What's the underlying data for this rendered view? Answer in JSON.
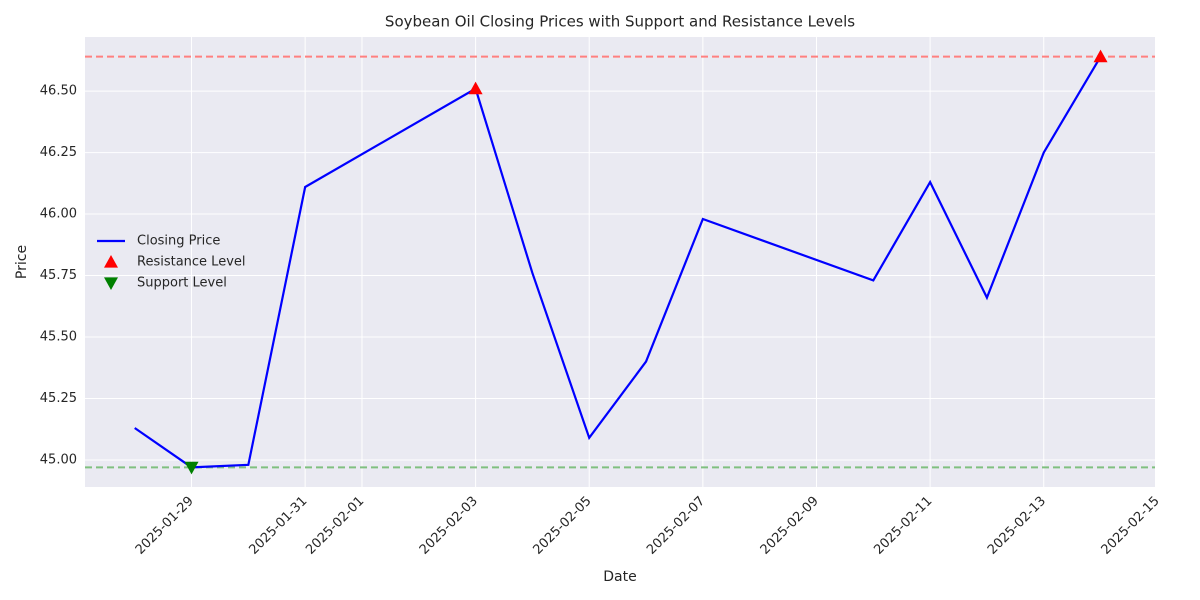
{
  "chart_data": {
    "type": "line",
    "title": "Soybean Oil Closing Prices with Support and Resistance Levels",
    "xlabel": "Date",
    "ylabel": "Price",
    "x": [
      "2025-01-28",
      "2025-01-29",
      "2025-01-30",
      "2025-01-31",
      "2025-02-03",
      "2025-02-04",
      "2025-02-05",
      "2025-02-06",
      "2025-02-07",
      "2025-02-10",
      "2025-02-11",
      "2025-02-12",
      "2025-02-13",
      "2025-02-14"
    ],
    "series": [
      {
        "name": "Closing Price",
        "type": "line",
        "color": "#0000ff",
        "values": [
          45.13,
          44.97,
          44.98,
          46.11,
          46.51,
          45.76,
          45.09,
          45.4,
          45.98,
          45.73,
          46.13,
          45.66,
          46.25,
          46.64
        ]
      },
      {
        "name": "Resistance Level",
        "type": "scatter",
        "marker": "triangle-up",
        "color": "#ff0000",
        "x": [
          "2025-02-03",
          "2025-02-14"
        ],
        "values": [
          46.51,
          46.64
        ]
      },
      {
        "name": "Support Level",
        "type": "scatter",
        "marker": "triangle-down",
        "color": "#008000",
        "x": [
          "2025-01-29"
        ],
        "values": [
          44.97
        ]
      }
    ],
    "hlines": [
      {
        "value": 46.64,
        "color": "#ff8080"
      },
      {
        "value": 44.97,
        "color": "#80c080"
      }
    ],
    "xlim": [
      "2025-01-27T03:00Z",
      "2025-02-14T23:00Z"
    ],
    "xticks": [
      "2025-01-29",
      "2025-01-31",
      "2025-02-01",
      "2025-02-03",
      "2025-02-05",
      "2025-02-07",
      "2025-02-09",
      "2025-02-11",
      "2025-02-13",
      "2025-02-15"
    ],
    "ylim": [
      44.89,
      46.72
    ],
    "yticks": [
      {
        "value": 45,
        "label": "45.00"
      },
      {
        "value": 45.25,
        "label": "45.25"
      },
      {
        "value": 45.5,
        "label": "45.50"
      },
      {
        "value": 45.75,
        "label": "45.75"
      },
      {
        "value": 46,
        "label": "46.00"
      },
      {
        "value": 46.25,
        "label": "46.25"
      },
      {
        "value": 46.5,
        "label": "46.50"
      }
    ],
    "grid": true,
    "legend": "center left"
  }
}
